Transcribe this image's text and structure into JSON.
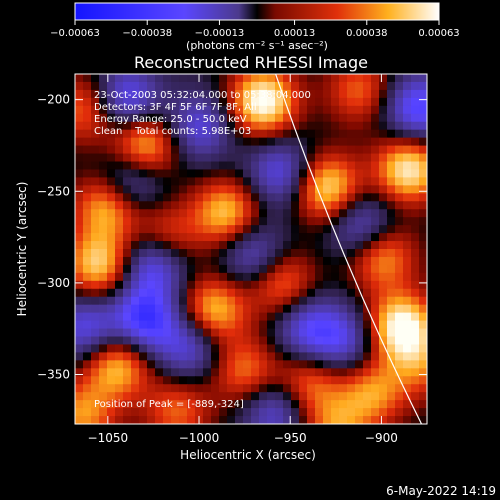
{
  "chart_data": {
    "type": "heatmap",
    "title": "Reconstructed RHESSI Image",
    "xlabel": "Heliocentric X (arcsec)",
    "ylabel": "Heliocentric Y (arcsec)",
    "xlim": [
      -1068,
      -875
    ],
    "ylim": [
      -377,
      -186
    ],
    "x_ticks": [
      {
        "v": -1050,
        "label": "−1050"
      },
      {
        "v": -1000,
        "label": "−1000"
      },
      {
        "v": -950,
        "label": "−950"
      },
      {
        "v": -900,
        "label": "−900"
      }
    ],
    "y_ticks": [
      {
        "v": -200,
        "label": "−200"
      },
      {
        "v": -250,
        "label": "−250"
      },
      {
        "v": -300,
        "label": "−300"
      },
      {
        "v": -350,
        "label": "−350"
      }
    ],
    "colorbar": {
      "min": -0.00063,
      "max": 0.00063,
      "ticks": [
        {
          "v": -0.00063,
          "label": "−0.00063"
        },
        {
          "v": -0.00038,
          "label": "−0.00038"
        },
        {
          "v": -0.00013,
          "label": "−0.00013"
        },
        {
          "v": 0.00013,
          "label": "0.00013"
        },
        {
          "v": 0.00038,
          "label": "0.00038"
        },
        {
          "v": 0.00063,
          "label": "0.00063"
        }
      ],
      "unit_label": "(photons cm⁻² s⁻¹ asec⁻²)"
    },
    "info_lines": [
      "23-Oct-2003 05:32:04.000 to 05:38:04.000",
      "Detectors: 3F 4F 5F 6F 7F 8F, All",
      "Energy Range: 25.0 - 50.0 keV",
      "Clean    Total counts: 5.98E+03"
    ],
    "peak_text": "Position of Peak = [-889,-324]",
    "peak": [
      -889,
      -324
    ],
    "grid": false,
    "sources": [
      {
        "x": -965,
        "y": -201,
        "level": 1.0
      },
      {
        "x": -885,
        "y": -238,
        "level": 0.9
      },
      {
        "x": -930,
        "y": -248,
        "level": 0.85
      },
      {
        "x": -1030,
        "y": -225,
        "level": 0.8
      },
      {
        "x": -1050,
        "y": -258,
        "level": 0.75
      },
      {
        "x": -985,
        "y": -262,
        "level": 0.75
      },
      {
        "x": -900,
        "y": -285,
        "level": 0.7
      },
      {
        "x": -1055,
        "y": -290,
        "level": 0.8
      },
      {
        "x": -955,
        "y": -300,
        "level": 0.6
      },
      {
        "x": -992,
        "y": -315,
        "level": 0.75
      },
      {
        "x": -889,
        "y": -324,
        "level": 1.0
      },
      {
        "x": -1045,
        "y": -345,
        "level": 0.75
      },
      {
        "x": -975,
        "y": -348,
        "level": 0.55
      },
      {
        "x": -1012,
        "y": -370,
        "level": 0.5
      },
      {
        "x": -940,
        "y": -355,
        "level": 0.55
      },
      {
        "x": -905,
        "y": -360,
        "level": 0.6
      },
      {
        "x": -1062,
        "y": -205,
        "level": 0.55
      },
      {
        "x": -912,
        "y": -195,
        "level": 0.5
      },
      {
        "x": -1018,
        "y": -275,
        "level": 0.5
      },
      {
        "x": -1064,
        "y": -372,
        "level": 0.6
      },
      {
        "x": -925,
        "y": -380,
        "level": 0.55
      },
      {
        "x": -878,
        "y": -345,
        "level": 0.45
      }
    ],
    "negatives": [
      {
        "x": -1040,
        "y": -200,
        "level": 0.7
      },
      {
        "x": -1000,
        "y": -215,
        "level": 0.55
      },
      {
        "x": -880,
        "y": -205,
        "level": 0.75
      },
      {
        "x": -1038,
        "y": -245,
        "level": 0.6
      },
      {
        "x": -955,
        "y": -240,
        "level": 0.6
      },
      {
        "x": -910,
        "y": -270,
        "level": 0.6
      },
      {
        "x": -1025,
        "y": -290,
        "level": 0.7
      },
      {
        "x": -970,
        "y": -285,
        "level": 0.55
      },
      {
        "x": -1062,
        "y": -325,
        "level": 0.6
      },
      {
        "x": -1030,
        "y": -320,
        "level": 0.8
      },
      {
        "x": -940,
        "y": -325,
        "level": 0.6
      },
      {
        "x": -1005,
        "y": -335,
        "level": 0.55
      },
      {
        "x": -958,
        "y": -370,
        "level": 0.55
      },
      {
        "x": -920,
        "y": -332,
        "level": 0.5
      }
    ],
    "limb_arc": {
      "start": [
        -958,
        -186
      ],
      "end": [
        -878,
        -377
      ]
    }
  },
  "footer": {
    "date": "6-May-2022 14:19"
  }
}
